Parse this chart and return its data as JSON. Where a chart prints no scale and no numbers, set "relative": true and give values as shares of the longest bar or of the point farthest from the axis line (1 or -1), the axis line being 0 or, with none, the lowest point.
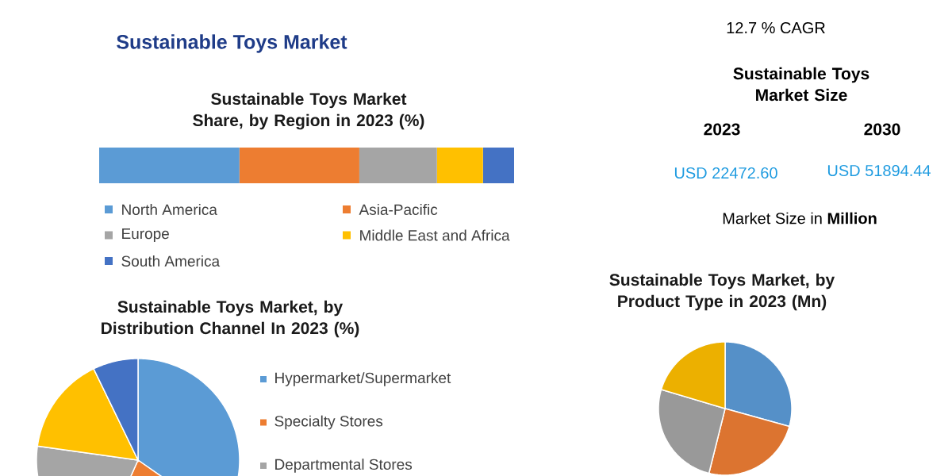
{
  "chart_data": [
    {
      "type": "bar",
      "orientation": "horizontal",
      "stacked": true,
      "relative": true,
      "title": "Sustainable Toys Market",
      "subtitle": "Sustainable Toys Market Share, by Region in 2023 (%)",
      "categories": [
        null
      ],
      "legend": "bottom",
      "series": [
        {
          "name": "North America",
          "color": "#5b9bd5",
          "values": [
            0.338
          ]
        },
        {
          "name": "Asia-Pacific",
          "color": "#ed7d31",
          "values": [
            0.289
          ]
        },
        {
          "name": "Europe",
          "color": "#a5a5a5",
          "values": [
            0.187
          ]
        },
        {
          "name": "Middle East and Africa",
          "color": "#ffc000",
          "values": [
            0.111
          ]
        },
        {
          "name": "South America",
          "color": "#4472c4",
          "values": [
            0.075
          ]
        }
      ]
    },
    {
      "type": "other",
      "title": "Sustainable Toys Market Size",
      "annotations": [
        "12.7 % CAGR",
        "2023",
        "2030",
        "USD 22472.60",
        "USD 51894.44",
        "Market Size in **Million**"
      ]
    },
    {
      "type": "pie",
      "title": "Sustainable Toys Market, by Distribution Channel In 2023 (%)",
      "legend": "right",
      "categories": [
        "Hypermarket/Supermarket",
        "Specialty Stores",
        "Departmental Stores",
        null,
        null
      ],
      "values": [
        34.7,
        22,
        20.5,
        15.6,
        7.2
      ],
      "colors": [
        "#5b9bd5",
        "#ed7d31",
        "#a5a5a5",
        "#ffc000",
        "#4472c4"
      ]
    },
    {
      "type": "pie",
      "title": "Sustainable Toys Market, by Product Type in 2023 (Mn)",
      "categories": [
        null,
        null,
        null,
        null
      ],
      "values": [
        29.3,
        24.6,
        25.7,
        20.4
      ],
      "colors": [
        "#5590c8",
        "#dc7430",
        "#999999",
        "#ecb000"
      ]
    }
  ]
}
